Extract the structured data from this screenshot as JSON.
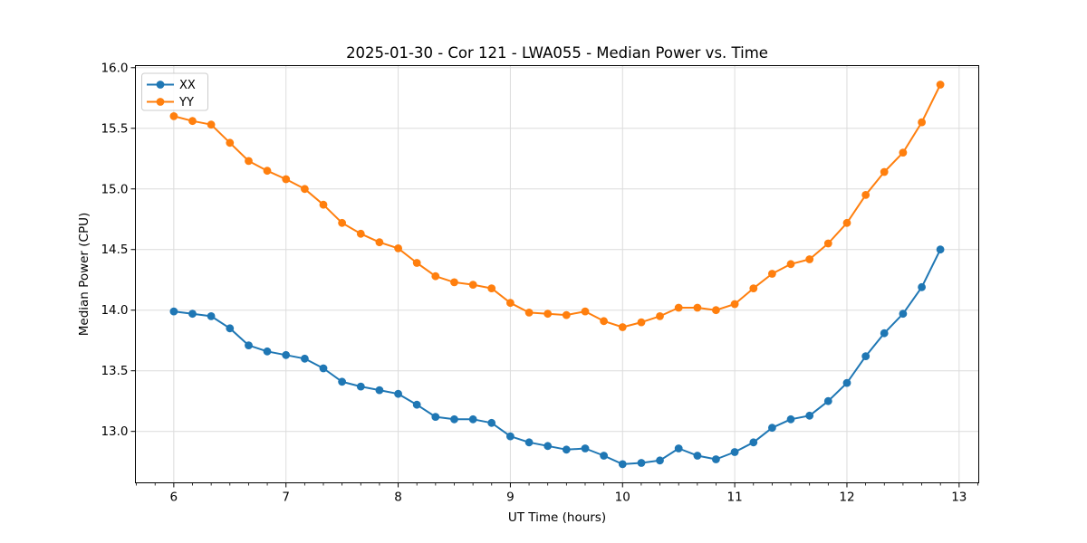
{
  "chart_data": {
    "type": "line",
    "title": "2025-01-30 - Cor 121 - LWA055 - Median Power vs. Time",
    "xlabel": "UT Time (hours)",
    "ylabel": "Median Power (CPU)",
    "xlim": [
      5.658,
      13.175
    ],
    "ylim": [
      12.576,
      16.017
    ],
    "x_ticks": [
      6,
      7,
      8,
      9,
      10,
      11,
      12,
      13
    ],
    "y_ticks": [
      13.0,
      13.5,
      14.0,
      14.5,
      15.0,
      15.5,
      16.0
    ],
    "x_minor_tick_step": 0.1666667,
    "grid": true,
    "grid_color": "#dcdcdc",
    "legend_position": "upper left",
    "x": [
      6.0,
      6.167,
      6.333,
      6.5,
      6.667,
      6.833,
      7.0,
      7.167,
      7.333,
      7.5,
      7.667,
      7.833,
      8.0,
      8.167,
      8.333,
      8.5,
      8.667,
      8.833,
      9.0,
      9.167,
      9.333,
      9.5,
      9.667,
      9.833,
      10.0,
      10.167,
      10.333,
      10.5,
      10.667,
      10.833,
      11.0,
      11.167,
      11.333,
      11.5,
      11.667,
      11.833,
      12.0,
      12.167,
      12.333,
      12.5,
      12.667,
      12.833
    ],
    "series": [
      {
        "name": "XX",
        "color": "#1f77b4",
        "values": [
          13.99,
          13.97,
          13.95,
          13.85,
          13.71,
          13.66,
          13.63,
          13.6,
          13.52,
          13.41,
          13.37,
          13.34,
          13.31,
          13.22,
          13.12,
          13.1,
          13.1,
          13.07,
          12.96,
          12.91,
          12.88,
          12.85,
          12.86,
          12.8,
          12.73,
          12.74,
          12.76,
          12.86,
          12.8,
          12.77,
          12.83,
          12.91,
          13.03,
          13.1,
          13.13,
          13.25,
          13.4,
          13.62,
          13.81,
          13.97,
          14.19,
          14.5
        ]
      },
      {
        "name": "YY",
        "color": "#ff7f0e",
        "values": [
          15.6,
          15.56,
          15.53,
          15.38,
          15.23,
          15.15,
          15.08,
          15.0,
          14.87,
          14.72,
          14.63,
          14.56,
          14.51,
          14.39,
          14.28,
          14.23,
          14.21,
          14.18,
          14.06,
          13.98,
          13.97,
          13.96,
          13.99,
          13.91,
          13.86,
          13.9,
          13.95,
          14.02,
          14.02,
          14.0,
          14.05,
          14.18,
          14.3,
          14.38,
          14.42,
          14.55,
          14.72,
          14.95,
          15.14,
          15.3,
          15.55,
          15.86
        ]
      }
    ]
  }
}
